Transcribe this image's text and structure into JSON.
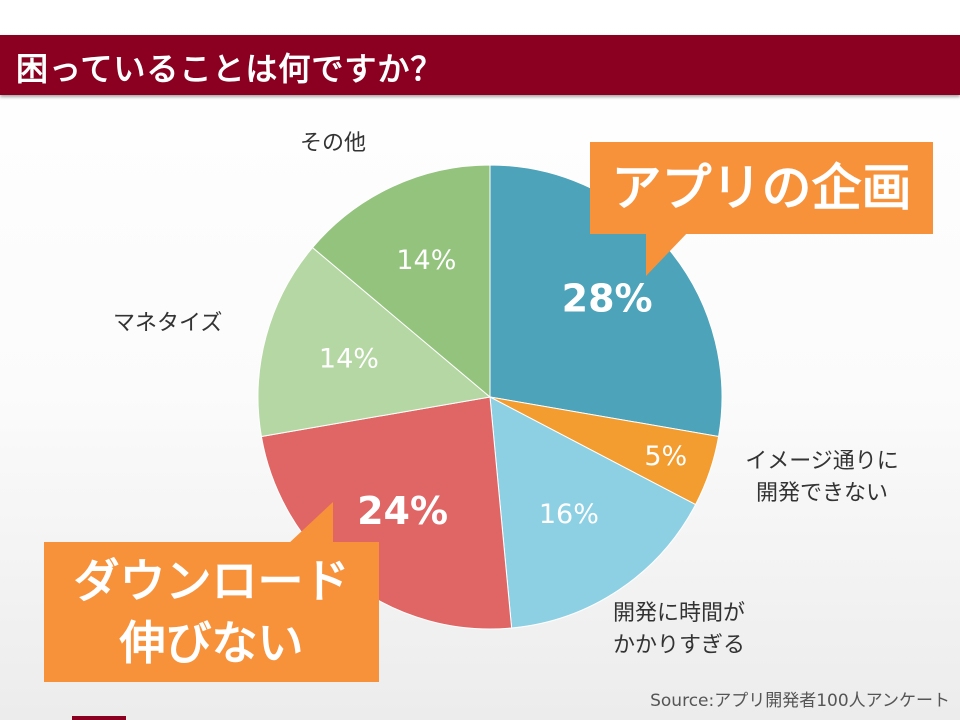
{
  "title": "困っていることは何ですか？",
  "chart_data": {
    "type": "pie",
    "slices": [
      {
        "label": "アプリの企画",
        "value": 28,
        "display": "28%",
        "color": "#4da3b9",
        "label_color": "#ffffff",
        "bold": true
      },
      {
        "label": "イメージ通りに開発できない",
        "value": 5,
        "display": "5%",
        "color": "#f39c2f",
        "label_color": "#ffffff",
        "bold": false
      },
      {
        "label": "開発に時間がかかりすぎる",
        "value": 16,
        "display": "16%",
        "color": "#8dd0e4",
        "label_color": "#ffffff",
        "bold": false
      },
      {
        "label": "ダウンロード伸びない",
        "value": 24,
        "display": "24%",
        "color": "#e06665",
        "label_color": "#ffffff",
        "bold": true
      },
      {
        "label": "マネタイズ",
        "value": 14,
        "display": "14%",
        "color": "#b5d7a4",
        "label_color": "#ffffff",
        "bold": false
      },
      {
        "label": "その他",
        "value": 14,
        "display": "14%",
        "color": "#93c37d",
        "label_color": "#ffffff",
        "bold": false
      }
    ]
  },
  "labels": {
    "other": "その他",
    "monetize": "マネタイズ",
    "image_line1": "イメージ通りに",
    "image_line2": "開発できない",
    "time_line1": "開発に時間が",
    "time_line2": "かかりすぎる"
  },
  "callouts": {
    "planning": "アプリの企画",
    "download_line1": "ダウンロード",
    "download_line2": "伸びない"
  },
  "source": "Source:アプリ開発者100人アンケート"
}
